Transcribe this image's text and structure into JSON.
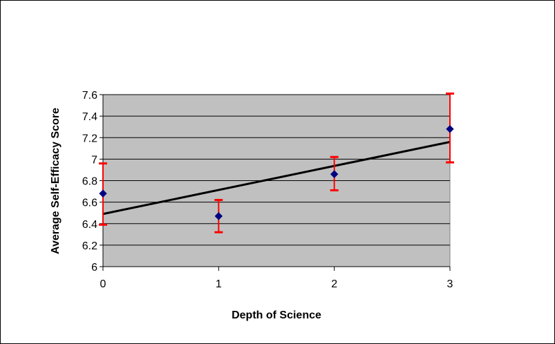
{
  "chart_data": {
    "type": "scatter",
    "title": "",
    "xlabel": "Depth of Science",
    "ylabel": "Average Self-Efficacy Score",
    "xlim": [
      0,
      3
    ],
    "ylim": [
      6,
      7.6
    ],
    "xticks": [
      "0",
      "1",
      "2",
      "3"
    ],
    "yticks": [
      "6",
      "6.2",
      "6.4",
      "6.6",
      "6.8",
      "7",
      "7.2",
      "7.4",
      "7.6"
    ],
    "grid": "horizontal",
    "legend": "none",
    "points": [
      {
        "x": 0,
        "y": 6.68,
        "err_low": 6.39,
        "err_high": 6.96
      },
      {
        "x": 1,
        "y": 6.47,
        "err_low": 6.32,
        "err_high": 6.62
      },
      {
        "x": 2,
        "y": 6.86,
        "err_low": 6.71,
        "err_high": 7.02
      },
      {
        "x": 3,
        "y": 7.28,
        "err_low": 6.97,
        "err_high": 7.61
      }
    ],
    "trendline": {
      "type": "linear",
      "start": {
        "x": 0,
        "y": 6.49
      },
      "end": {
        "x": 3,
        "y": 7.16
      }
    },
    "colors": {
      "plot_background": "#c0c0c0",
      "gridline": "#000000",
      "marker": "#000080",
      "error_bar": "#ff0000",
      "trendline": "#000000"
    }
  }
}
